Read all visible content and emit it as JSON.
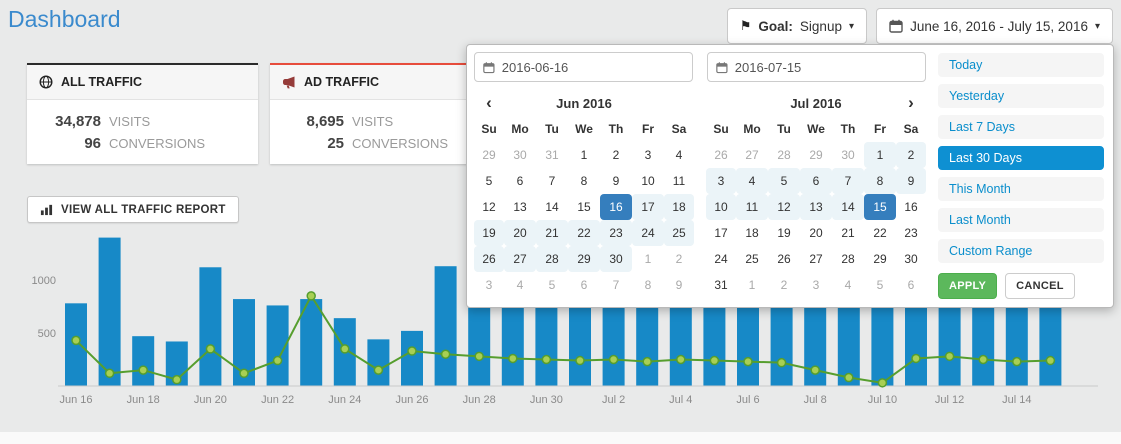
{
  "header": {
    "title": "Dashboard",
    "goal_label": "Goal:",
    "goal_value": "Signup",
    "date_range": "June 16, 2016 - July 15, 2016"
  },
  "cards": [
    {
      "title": "ALL TRAFFIC",
      "icon": "globe-icon",
      "accent": "#2b2b2b",
      "stats": [
        {
          "value": "34,878",
          "label": "VISITS"
        },
        {
          "value": "96",
          "label": "CONVERSIONS"
        }
      ]
    },
    {
      "title": "AD TRAFFIC",
      "icon": "megaphone-icon",
      "accent": "#e74c3c",
      "stats": [
        {
          "value": "8,695",
          "label": "VISITS"
        },
        {
          "value": "25",
          "label": "CONVERSIONS"
        }
      ]
    }
  ],
  "actions": {
    "view_report_label": "VIEW ALL TRAFFIC REPORT"
  },
  "chart_data": {
    "type": "bar",
    "x": [
      "Jun 16",
      "Jun 17",
      "Jun 18",
      "Jun 19",
      "Jun 20",
      "Jun 21",
      "Jun 22",
      "Jun 23",
      "Jun 24",
      "Jun 25",
      "Jun 26",
      "Jun 27",
      "Jun 28",
      "Jun 29",
      "Jun 30",
      "Jul 1",
      "Jul 2",
      "Jul 3",
      "Jul 4",
      "Jul 5",
      "Jul 6",
      "Jul 7",
      "Jul 8",
      "Jul 9",
      "Jul 10",
      "Jul 11",
      "Jul 12",
      "Jul 13",
      "Jul 14",
      "Jul 15"
    ],
    "series": [
      {
        "name": "Visits",
        "type": "bar",
        "color": "#1789c7",
        "values": [
          780,
          1400,
          470,
          420,
          1120,
          820,
          760,
          820,
          640,
          440,
          520,
          1130,
          980,
          860,
          900,
          820,
          950,
          780,
          870,
          920,
          840,
          790,
          860,
          900,
          830,
          760,
          880,
          940,
          810,
          850
        ]
      },
      {
        "name": "Conversions",
        "type": "line",
        "color": "#569e2e",
        "point_fill": "#a8cf54",
        "values": [
          430,
          120,
          150,
          60,
          350,
          120,
          240,
          850,
          350,
          150,
          330,
          300,
          280,
          260,
          250,
          240,
          250,
          230,
          250,
          240,
          230,
          220,
          150,
          80,
          30,
          260,
          280,
          250,
          230,
          240
        ]
      }
    ],
    "y_ticks": [
      500,
      1000
    ],
    "ylim": [
      0,
      1450
    ],
    "x_tick_every": 2,
    "grid": "off",
    "legend": "none"
  },
  "popup": {
    "start_input": "2016-06-16",
    "end_input": "2016-07-15",
    "calendars": [
      {
        "month": "Jun 2016",
        "show_prev": true,
        "show_next": false,
        "dow": [
          "Su",
          "Mo",
          "Tu",
          "We",
          "Th",
          "Fr",
          "Sa"
        ],
        "weeks": [
          [
            "29|off",
            "30|off",
            "31|off",
            "1|",
            "2|",
            "3|",
            "4|"
          ],
          [
            "5|",
            "6|",
            "7|",
            "8|",
            "9|",
            "10|",
            "11|"
          ],
          [
            "12|",
            "13|",
            "14|",
            "15|",
            "16|active",
            "17|in",
            "18|in"
          ],
          [
            "19|in",
            "20|in",
            "21|in",
            "22|in",
            "23|in",
            "24|in",
            "25|in"
          ],
          [
            "26|in",
            "27|in",
            "28|in",
            "29|in",
            "30|in",
            "1|off",
            "2|off"
          ],
          [
            "3|off",
            "4|off",
            "5|off",
            "6|off",
            "7|off",
            "8|off",
            "9|off"
          ]
        ]
      },
      {
        "month": "Jul 2016",
        "show_prev": false,
        "show_next": true,
        "dow": [
          "Su",
          "Mo",
          "Tu",
          "We",
          "Th",
          "Fr",
          "Sa"
        ],
        "weeks": [
          [
            "26|off",
            "27|off",
            "28|off",
            "29|off",
            "30|off",
            "1|in",
            "2|in"
          ],
          [
            "3|in",
            "4|in",
            "5|in",
            "6|in",
            "7|in",
            "8|in",
            "9|in"
          ],
          [
            "10|in",
            "11|in",
            "12|in",
            "13|in",
            "14|in",
            "15|active",
            "16|"
          ],
          [
            "17|",
            "18|",
            "19|",
            "20|",
            "21|",
            "22|",
            "23|"
          ],
          [
            "24|",
            "25|",
            "26|",
            "27|",
            "28|",
            "29|",
            "30|"
          ],
          [
            "31|",
            "1|off",
            "2|off",
            "3|off",
            "4|off",
            "5|off",
            "6|off"
          ]
        ]
      }
    ],
    "ranges": [
      {
        "label": "Today",
        "active": false
      },
      {
        "label": "Yesterday",
        "active": false
      },
      {
        "label": "Last 7 Days",
        "active": false
      },
      {
        "label": "Last 30 Days",
        "active": true
      },
      {
        "label": "This Month",
        "active": false
      },
      {
        "label": "Last Month",
        "active": false
      },
      {
        "label": "Custom Range",
        "active": false
      }
    ],
    "apply_label": "APPLY",
    "cancel_label": "CANCEL",
    "colors": {
      "selected_day": "#357ebd",
      "in_range": "#ebf4f8",
      "active_range_bg": "#0e90d2"
    }
  }
}
